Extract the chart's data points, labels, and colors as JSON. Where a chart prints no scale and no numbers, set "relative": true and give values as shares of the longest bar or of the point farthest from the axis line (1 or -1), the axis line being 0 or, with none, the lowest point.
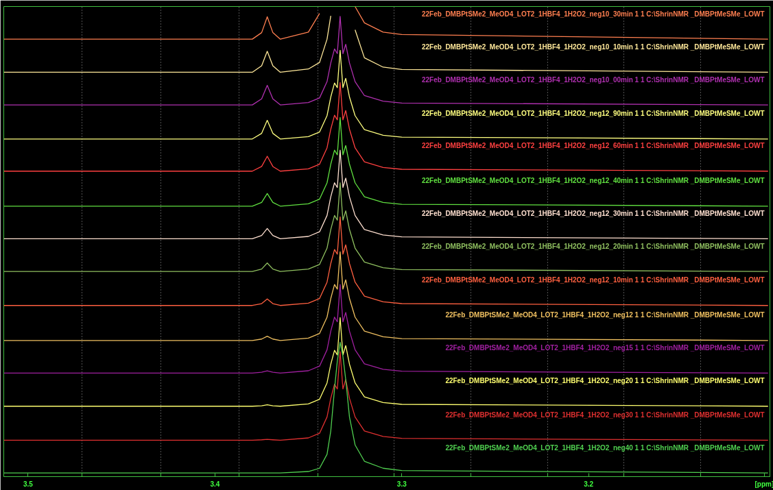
{
  "chart_data": {
    "type": "line",
    "relative": true,
    "xlim": [
      3.513,
      3.103
    ],
    "xticks": [
      3.5,
      3.4,
      3.3,
      3.2,
      {
        "value": 3.106,
        "label": "[ppm]"
      },
      {
        "value": 3.471,
        "label": null
      },
      {
        "value": 3.429,
        "label": null
      },
      {
        "value": 3.387,
        "label": null
      },
      {
        "value": 3.345,
        "label": null
      },
      {
        "value": 3.304,
        "label": null
      },
      {
        "value": 3.263,
        "label": null
      },
      {
        "value": 3.222,
        "label": null
      },
      {
        "value": 3.181,
        "label": null
      },
      {
        "value": 3.14,
        "label": null
      }
    ],
    "grid": "x",
    "x": [
      3.513,
      3.45,
      3.38,
      3.375,
      3.372,
      3.369,
      3.365,
      3.35,
      3.344,
      3.34,
      3.338,
      3.336,
      3.3345,
      3.333,
      3.3315,
      3.33,
      3.328,
      3.325,
      3.32,
      3.31,
      3.3,
      3.104
    ],
    "series": [
      {
        "name": "22Feb_DMBPtSMe2_MeOD4_LOT2_1HBF4_1H2O2_neg10_30min 1 1 C:\\ShrinNMR _DMBPtMeSMe_LOWT",
        "color": "#ff7f50",
        "values": [
          0.93,
          0.93,
          0.93,
          0.944,
          0.978,
          0.944,
          0.93,
          0.945,
          0.985,
          null,
          null,
          null,
          null,
          null,
          null,
          null,
          null,
          1.0,
          0.965,
          0.945,
          0.94,
          0.93
        ]
      },
      {
        "name": "22Feb_DMBPtSMe2_MeOD4_LOT2_1HBF4_1H2O2_neg10_10min 1 1 C:\\ShrinNMR _DMBPtMeSMe_LOWT",
        "color": "#ffe89a",
        "values": [
          0.859,
          0.859,
          0.859,
          0.873,
          0.904,
          0.873,
          0.859,
          0.866,
          0.88,
          0.93,
          0.98,
          null,
          null,
          null,
          null,
          null,
          null,
          0.95,
          0.89,
          0.87,
          0.865,
          0.859
        ]
      },
      {
        "name": "22Feb_DMBPtSMe2_MeOD4_LOT2_1HBF4_1H2O2_neg10_00min 1 1 C:\\ShrinNMR _DMBPtMeSMe_LOWT",
        "color": "#b030b0",
        "values": [
          0.789,
          0.789,
          0.789,
          0.802,
          0.831,
          0.802,
          0.789,
          0.794,
          0.804,
          0.839,
          0.879,
          0.909,
          0.899,
          0.979,
          0.899,
          0.919,
          0.879,
          0.839,
          0.809,
          0.797,
          0.793,
          0.789
        ]
      },
      {
        "name": "22Feb_DMBPtSMe2_MeOD4_LOT2_1HBF4_1H2O2_neg12_90min 1 1 C:\\ShrinNMR _DMBPtMeSMe_LOWT",
        "color": "#ffff80",
        "values": [
          0.716,
          0.716,
          0.716,
          0.728,
          0.756,
          0.728,
          0.716,
          0.721,
          0.731,
          0.766,
          0.806,
          0.836,
          0.826,
          0.906,
          0.826,
          0.846,
          0.806,
          0.766,
          0.736,
          0.724,
          0.72,
          0.716
        ]
      },
      {
        "name": "22Feb_DMBPtSMe2_MeOD4_LOT2_1HBF4_1H2O2_neg12_60min 1 1 C:\\ShrinNMR _DMBPtMeSMe_LOWT",
        "color": "#ff4040",
        "values": [
          0.647,
          0.647,
          0.647,
          0.657,
          0.679,
          0.657,
          0.647,
          0.652,
          0.662,
          0.697,
          0.737,
          0.767,
          0.757,
          0.837,
          0.757,
          0.777,
          0.737,
          0.697,
          0.667,
          0.655,
          0.651,
          0.647
        ]
      },
      {
        "name": "22Feb_DMBPtSMe2_MeOD4_LOT2_1HBF4_1H2O2_neg12_40min 1 1 C:\\ShrinNMR _DMBPtMeSMe_LOWT",
        "color": "#60e040",
        "values": [
          0.572,
          0.572,
          0.572,
          0.58,
          0.599,
          0.58,
          0.572,
          0.577,
          0.587,
          0.622,
          0.662,
          0.692,
          0.682,
          0.762,
          0.682,
          0.702,
          0.662,
          0.622,
          0.592,
          0.58,
          0.576,
          0.572
        ]
      },
      {
        "name": "22Feb_DMBPtSMe2_MeOD4_LOT2_1HBF4_1H2O2_neg12_30min 1 1 C:\\ShrinNMR _DMBPtMeSMe_LOWT",
        "color": "#ffe0d0",
        "values": [
          0.502,
          0.502,
          0.502,
          0.509,
          0.524,
          0.509,
          0.502,
          0.507,
          0.517,
          0.552,
          0.592,
          0.622,
          0.612,
          0.692,
          0.612,
          0.632,
          0.592,
          0.552,
          0.522,
          0.51,
          0.506,
          0.502
        ]
      },
      {
        "name": "22Feb_DMBPtSMe2_MeOD4_LOT2_1HBF4_1H2O2_neg12_20min 1 1 C:\\ShrinNMR _DMBPtMeSMe_LOWT",
        "color": "#90c060",
        "values": [
          0.432,
          0.432,
          0.432,
          0.437,
          0.45,
          0.437,
          0.432,
          0.437,
          0.447,
          0.482,
          0.522,
          0.552,
          0.542,
          0.622,
          0.542,
          0.562,
          0.522,
          0.482,
          0.452,
          0.44,
          0.436,
          0.432
        ]
      },
      {
        "name": "22Feb_DMBPtSMe2_MeOD4_LOT2_1HBF4_1H2O2_neg12_10min 1 1 C:\\ShrinNMR _DMBPtMeSMe_LOWT",
        "color": "#ff6040",
        "values": [
          0.359,
          0.359,
          0.359,
          0.363,
          0.373,
          0.363,
          0.359,
          0.364,
          0.374,
          0.409,
          0.449,
          0.479,
          0.469,
          0.549,
          0.469,
          0.489,
          0.449,
          0.409,
          0.379,
          0.367,
          0.363,
          0.359
        ]
      },
      {
        "name": "22Feb_DMBPtSMe2_MeOD4_LOT2_1HBF4_1H2O2_neg12 1 1 C:\\ShrinNMR _DMBPtMeSMe_LOWT",
        "color": "#f0c060",
        "values": [
          0.284,
          0.284,
          0.284,
          0.287,
          0.293,
          0.287,
          0.284,
          0.289,
          0.299,
          0.334,
          0.374,
          0.404,
          0.394,
          0.474,
          0.394,
          0.414,
          0.374,
          0.334,
          0.304,
          0.292,
          0.288,
          0.284
        ]
      },
      {
        "name": "22Feb_DMBPtSMe2_MeOD4_LOT2_1HBF4_1H2O2_neg15 1 1 C:\\ShrinNMR _DMBPtMeSMe_LOWT",
        "color": "#a020a0",
        "values": [
          0.214,
          0.214,
          0.214,
          0.216,
          0.219,
          0.216,
          0.214,
          0.219,
          0.229,
          0.264,
          0.304,
          0.334,
          0.324,
          0.404,
          0.324,
          0.344,
          0.304,
          0.264,
          0.234,
          0.222,
          0.218,
          0.214
        ]
      },
      {
        "name": "22Feb_DMBPtSMe2_MeOD4_LOT2_1HBF4_1H2O2_neg20 1 1 C:\\ShrinNMR _DMBPtMeSMe_LOWT",
        "color": "#ffff70",
        "values": [
          0.143,
          0.143,
          0.143,
          0.144,
          0.146,
          0.144,
          0.143,
          0.148,
          0.158,
          0.193,
          0.233,
          0.263,
          0.253,
          0.333,
          0.253,
          0.273,
          0.233,
          0.193,
          0.163,
          0.151,
          0.147,
          0.143
        ]
      },
      {
        "name": "22Feb_DMBPtSMe2_MeOD4_LOT2_1HBF4_1H2O2_neg30 1 1 C:\\ShrinNMR _DMBPtMeSMe_LOWT",
        "color": "#e03030",
        "values": [
          0.07,
          0.07,
          0.07,
          0.071,
          0.072,
          0.071,
          0.07,
          0.075,
          0.085,
          0.12,
          0.16,
          0.19,
          0.18,
          0.26,
          0.18,
          0.2,
          0.16,
          0.12,
          0.09,
          0.078,
          0.074,
          0.07
        ]
      },
      {
        "name": "22Feb_DMBPtSMe2_MeOD4_LOT2_1HBF4_1H2O2_neg40 1 1 C:\\ShrinNMR _DMBPtMeSMe_LOWT",
        "color": "#50d050",
        "values": [
          0,
          0,
          0,
          0,
          0,
          0,
          0,
          0.003,
          0.01,
          0.04,
          0.09,
          0.18,
          0.24,
          0.28,
          0.25,
          0.2,
          0.12,
          0.06,
          0.025,
          0.01,
          0.005,
          0
        ]
      }
    ]
  }
}
